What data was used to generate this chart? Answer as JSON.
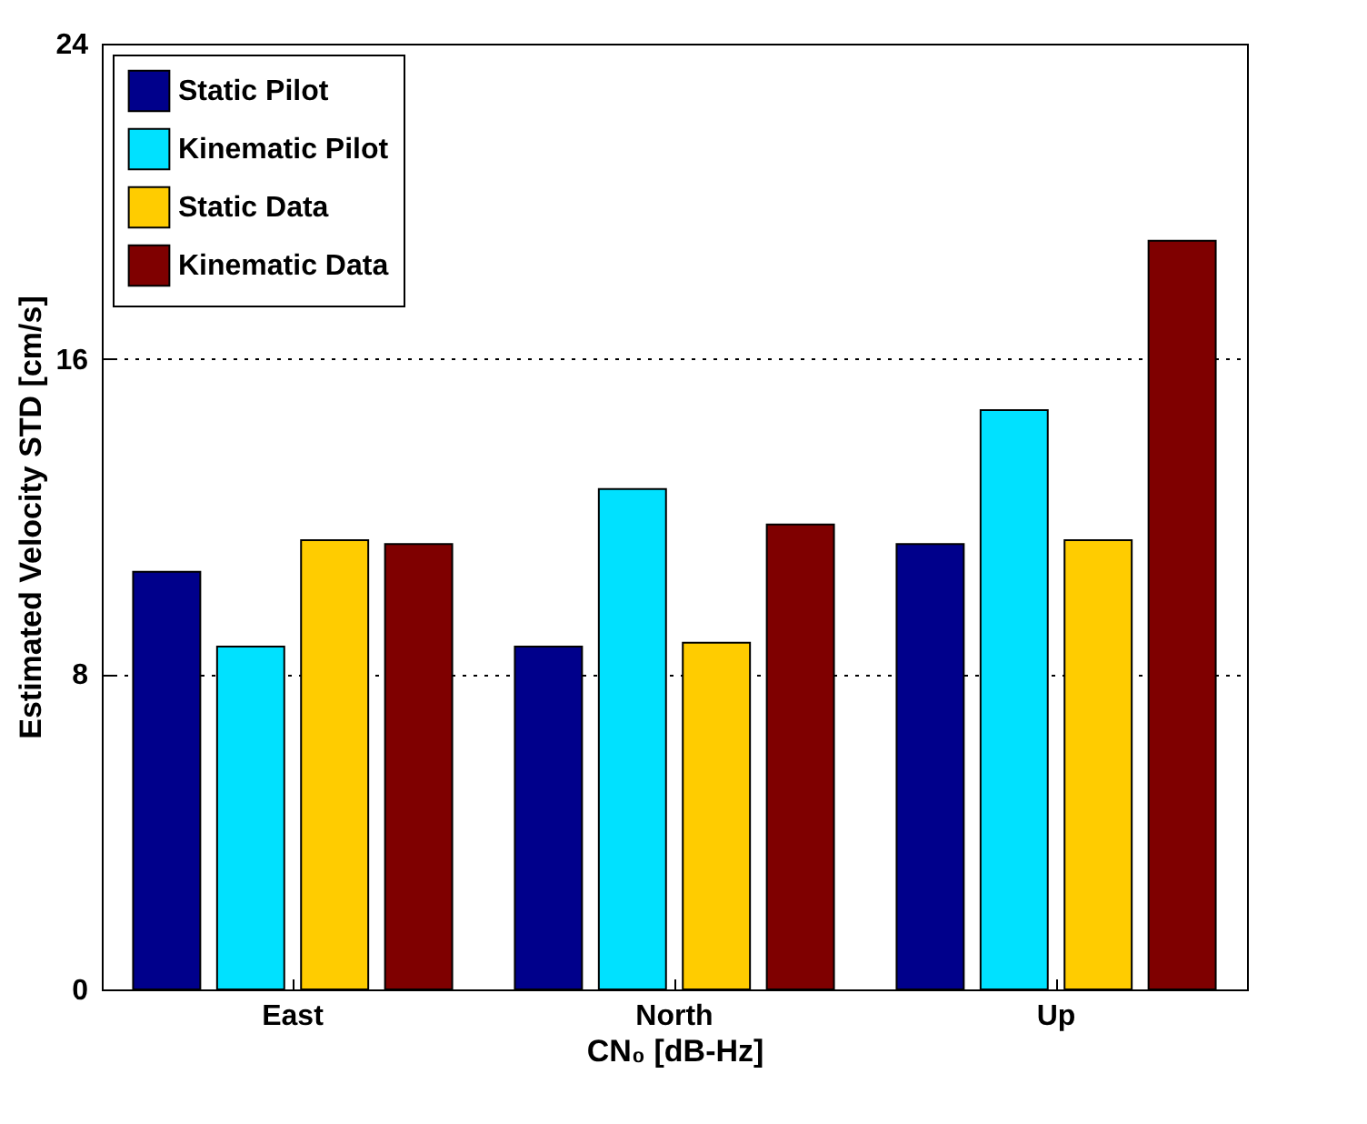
{
  "chart_data": {
    "type": "bar",
    "xlabel": "CN₀ [dB-Hz]",
    "ylabel": "Estimated Velocity STD [cm/s]",
    "categories": [
      "East",
      "North",
      "Up"
    ],
    "series": [
      {
        "name": "Static Pilot",
        "color": "#00008b",
        "values": [
          10.6,
          8.7,
          11.3
        ]
      },
      {
        "name": "Kinematic Pilot",
        "color": "#00e1ff",
        "values": [
          8.7,
          12.7,
          14.7
        ]
      },
      {
        "name": "Static Data",
        "color": "#ffcc00",
        "values": [
          11.4,
          8.8,
          11.4
        ]
      },
      {
        "name": "Kinematic Data",
        "color": "#7f0000",
        "values": [
          11.3,
          11.8,
          19.0
        ]
      }
    ],
    "ylim": [
      0,
      24
    ],
    "yticks": [
      0,
      8,
      16,
      24
    ],
    "grid": "y",
    "legend": "top left"
  }
}
